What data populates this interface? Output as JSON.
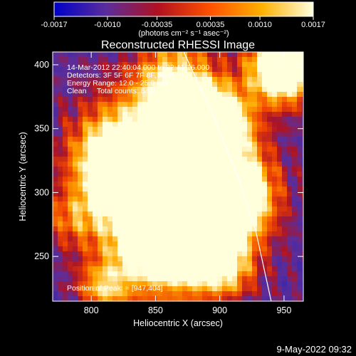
{
  "chart_data": {
    "type": "heatmap",
    "title": "Reconstructed RHESSI Image",
    "xlabel": "Heliocentric X (arcsec)",
    "ylabel": "Heliocentric Y (arcsec)",
    "xlim": [
      770,
      965
    ],
    "ylim": [
      215,
      410
    ],
    "x_ticks": [
      800,
      850,
      900,
      950
    ],
    "y_ticks": [
      250,
      300,
      350,
      400
    ],
    "colorbar": {
      "min": -0.0017,
      "max": 0.0017,
      "ticks": [
        -0.0017,
        -0.001,
        -0.00035,
        0.00035,
        0.001,
        0.0017
      ],
      "tick_labels": [
        "-0.0017",
        "-0.0010",
        "-0.00035",
        "0.00035",
        "0.0010",
        "0.0017"
      ],
      "unit_label": "(photons cm⁻² s⁻¹ asec⁻²)",
      "colors": [
        "#0000c8",
        "#5a2d9c",
        "#b01020",
        "#ff5000",
        "#ffb000",
        "#ffffe0"
      ]
    },
    "info_lines": [
      "14-Mar-2012 22:40:04.000 to 22:41:16.000",
      "Detectors: 3F 5F 6F 7F 8F, Att 0",
      "Energy Range: 12.0 - 25.0 keV",
      "Clean     Total counts: 842."
    ],
    "peak_label": "Position of Peak: = [947,404]",
    "peak_position": [
      947,
      404
    ],
    "limb_curve": [
      [
        872,
        410
      ],
      [
        895,
        360
      ],
      [
        915,
        310
      ],
      [
        928,
        270
      ],
      [
        940,
        215
      ]
    ],
    "grid": false
  },
  "footer": {
    "date": "9-May-2022 09:32"
  }
}
